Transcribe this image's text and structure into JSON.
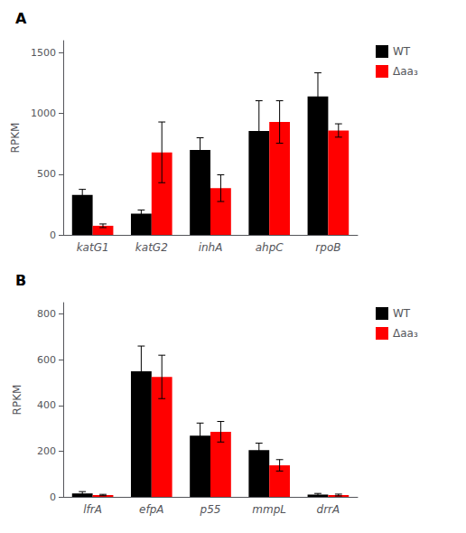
{
  "chart_data": [
    {
      "type": "bar",
      "title": "A",
      "categories": [
        "katG1",
        "katG2",
        "inhA",
        "ahpC",
        "rpoB"
      ],
      "series": [
        {
          "name": "WT",
          "color": "#000000",
          "values": [
            330,
            175,
            700,
            855,
            1140
          ],
          "errors": [
            45,
            30,
            100,
            250,
            195
          ]
        },
        {
          "name": "Δaa₃",
          "color": "#ff0000",
          "values": [
            75,
            680,
            385,
            930,
            860
          ],
          "errors": [
            15,
            250,
            110,
            175,
            55
          ]
        }
      ],
      "ylabel": "RPKM",
      "ylim": [
        0,
        1600
      ],
      "yticks": [
        0,
        500,
        1000,
        1500
      ],
      "grid": false,
      "legend": "right"
    },
    {
      "type": "bar",
      "title": "B",
      "categories": [
        "lfrA",
        "efpA",
        "p55",
        "mmpL",
        "drrA"
      ],
      "series": [
        {
          "name": "WT",
          "color": "#000000",
          "values": [
            15,
            550,
            268,
            205,
            10
          ],
          "errors": [
            8,
            110,
            55,
            30,
            5
          ]
        },
        {
          "name": "Δaa₃",
          "color": "#ff0000",
          "values": [
            8,
            525,
            285,
            138,
            8
          ],
          "errors": [
            3,
            95,
            45,
            25,
            4
          ]
        }
      ],
      "ylabel": "RPKM",
      "ylim": [
        0,
        850
      ],
      "yticks": [
        0,
        200,
        400,
        600,
        800
      ],
      "grid": false,
      "legend": "right"
    }
  ]
}
